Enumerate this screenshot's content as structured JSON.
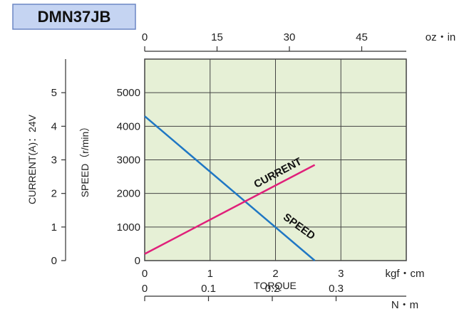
{
  "chart_data": {
    "type": "line",
    "model": "DMN37JB",
    "colors": {
      "plot_bg": "#e6f0d6",
      "grid": "#444444",
      "model_bg": "#c5d4f2",
      "model_border": "#6b86c4",
      "speed": "#1f77c4",
      "current": "#e0207a"
    },
    "x_axis": {
      "label": "TORQUE",
      "unit": "kgf・cm",
      "range": [
        0,
        4
      ],
      "ticks": [
        "0",
        "1",
        "2",
        "3"
      ]
    },
    "x_axis_top": {
      "unit": "oz・in",
      "ticks": [
        "0",
        "15",
        "30",
        "45"
      ]
    },
    "x_axis_bottom2": {
      "unit": "N・m",
      "ticks": [
        "0",
        "0.1",
        "0.2",
        "0.3"
      ]
    },
    "y_axis_speed": {
      "label": "SPEED（r/min）",
      "range": [
        0,
        6000
      ],
      "ticks": [
        "0",
        "1000",
        "2000",
        "3000",
        "4000",
        "5000"
      ]
    },
    "y_axis_current": {
      "label": "CURRENT(A)：24V",
      "range": [
        0,
        6
      ],
      "ticks": [
        "0",
        "1",
        "2",
        "3",
        "4",
        "5"
      ]
    },
    "series": [
      {
        "name": "SPEED",
        "axis": "speed",
        "x": [
          0,
          2.6
        ],
        "y": [
          4300,
          0
        ]
      },
      {
        "name": "CURRENT",
        "axis": "current",
        "x": [
          0,
          2.6
        ],
        "y": [
          0.2,
          2.85
        ]
      }
    ],
    "grid": true
  }
}
